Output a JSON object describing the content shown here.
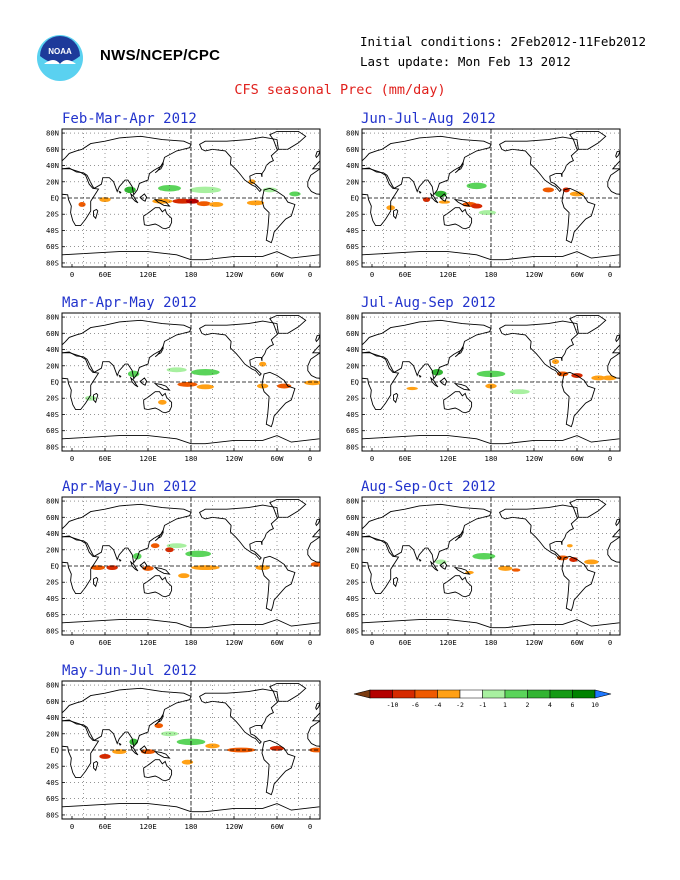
{
  "header": {
    "org": "NWS/NCEP/CPC",
    "initial_conditions": "Initial conditions: 2Feb2012-11Feb2012",
    "last_update": "Last update: Mon Feb 13 2012",
    "title": "CFS seasonal Prec (mm/day)"
  },
  "logo": {
    "name": "noaa-logo",
    "text": "NOAA"
  },
  "map_axes": {
    "lat_labels": [
      "80N",
      "60N",
      "40N",
      "20N",
      "EQ",
      "20S",
      "40S",
      "60S",
      "80S"
    ],
    "lon_labels": [
      "0",
      "60E",
      "120E",
      "180",
      "120W",
      "60W",
      "0"
    ]
  },
  "panels": [
    {
      "id": "fma",
      "title": "Feb-Mar-Apr 2012"
    },
    {
      "id": "jja",
      "title": "Jun-Jul-Aug 2012"
    },
    {
      "id": "mam",
      "title": "Mar-Apr-May 2012"
    },
    {
      "id": "jas",
      "title": "Jul-Aug-Sep 2012"
    },
    {
      "id": "amj",
      "title": "Apr-May-Jun 2012"
    },
    {
      "id": "aso",
      "title": "Aug-Sep-Oct 2012"
    },
    {
      "id": "mjj",
      "title": "May-Jun-Jul 2012"
    }
  ],
  "colorbar": {
    "labels": [
      "-10",
      "-6",
      "-4",
      "-2",
      "-1",
      "1",
      "2",
      "4",
      "6",
      "10"
    ],
    "colors": [
      "#7a3a10",
      "#b40000",
      "#d62a00",
      "#ef5a00",
      "#ffa015",
      "#ffffff",
      "#a8f0a0",
      "#5ad45a",
      "#32b432",
      "#159a15",
      "#008200",
      "#1e78ff"
    ]
  }
}
